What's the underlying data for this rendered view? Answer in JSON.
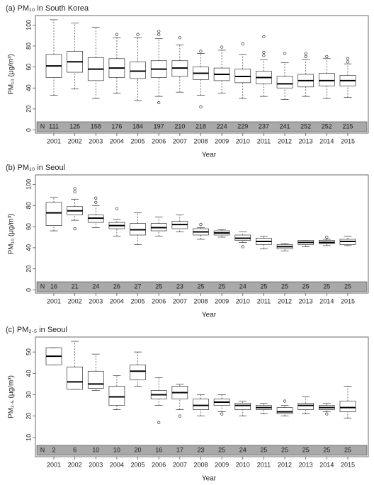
{
  "chart_data": [
    {
      "type": "box",
      "title": "(a) PM₁₀ in South Korea",
      "x_label": "Year",
      "y_label": "PM₁₀ (μg/m³)",
      "categories": [
        "2001",
        "2002",
        "2003",
        "2004",
        "2005",
        "2006",
        "2007",
        "2008",
        "2009",
        "2010",
        "2011",
        "2012",
        "2013",
        "2014",
        "2015"
      ],
      "boxes": [
        {
          "min": 33,
          "q1": 50,
          "median": 61,
          "q3": 72,
          "max": 105,
          "outliers": []
        },
        {
          "min": 39,
          "q1": 55,
          "median": 65,
          "q3": 75,
          "max": 102,
          "outliers": []
        },
        {
          "min": 30,
          "q1": 47,
          "median": 58,
          "q3": 69,
          "max": 98,
          "outliers": []
        },
        {
          "min": 35,
          "q1": 50,
          "median": 59,
          "q3": 68,
          "max": 88,
          "outliers": [
            91
          ]
        },
        {
          "min": 28,
          "q1": 49,
          "median": 56,
          "q3": 65,
          "max": 88,
          "outliers": [
            91
          ]
        },
        {
          "min": 32,
          "q1": 50,
          "median": 58,
          "q3": 66,
          "max": 87,
          "outliers": [
            91,
            94,
            26
          ]
        },
        {
          "min": 36,
          "q1": 51,
          "median": 59,
          "q3": 66,
          "max": 81,
          "outliers": [
            88
          ]
        },
        {
          "min": 33,
          "q1": 48,
          "median": 54,
          "q3": 60,
          "max": 73,
          "outliers": [
            75,
            22
          ]
        },
        {
          "min": 35,
          "q1": 47,
          "median": 53,
          "q3": 59,
          "max": 76,
          "outliers": [
            79
          ]
        },
        {
          "min": 30,
          "q1": 45,
          "median": 51,
          "q3": 58,
          "max": 72,
          "outliers": [
            82
          ]
        },
        {
          "min": 32,
          "q1": 44,
          "median": 50,
          "q3": 56,
          "max": 67,
          "outliers": [
            71,
            74,
            89
          ]
        },
        {
          "min": 29,
          "q1": 40,
          "median": 44,
          "q3": 51,
          "max": 64,
          "outliers": [
            73
          ]
        },
        {
          "min": 32,
          "q1": 41,
          "median": 47,
          "q3": 53,
          "max": 67,
          "outliers": [
            70,
            73
          ]
        },
        {
          "min": 30,
          "q1": 42,
          "median": 47,
          "q3": 54,
          "max": 68,
          "outliers": [
            70
          ]
        },
        {
          "min": 31,
          "q1": 42,
          "median": 47,
          "q3": 52,
          "max": 63,
          "outliers": [
            65,
            68
          ]
        }
      ],
      "n_label": "N",
      "n_values": [
        111,
        125,
        158,
        176,
        184,
        197,
        210,
        218,
        224,
        229,
        237,
        241,
        252,
        252,
        215
      ],
      "ylim": [
        -3,
        109
      ],
      "yticks": [
        0,
        20,
        40,
        60,
        80,
        100
      ],
      "color": "#ffffff"
    },
    {
      "type": "box",
      "title": "(b) PM₁₀ in Seoul",
      "x_label": "Year",
      "y_label": "PM₁₀ (μg/m³)",
      "categories": [
        "2001",
        "2002",
        "2003",
        "2004",
        "2005",
        "2006",
        "2007",
        "2008",
        "2009",
        "2010",
        "2011",
        "2012",
        "2013",
        "2014",
        "2015"
      ],
      "boxes": [
        {
          "min": 56,
          "q1": 61,
          "median": 73,
          "q3": 83,
          "max": 88,
          "outliers": []
        },
        {
          "min": 66,
          "q1": 71,
          "median": 75,
          "q3": 79,
          "max": 86,
          "outliers": [
            96,
            93,
            58
          ]
        },
        {
          "min": 59,
          "q1": 64,
          "median": 68,
          "q3": 71,
          "max": 80,
          "outliers": [
            87,
            83
          ]
        },
        {
          "min": 51,
          "q1": 58,
          "median": 61,
          "q3": 64,
          "max": 67,
          "outliers": [
            77
          ]
        },
        {
          "min": 43,
          "q1": 52,
          "median": 57,
          "q3": 63,
          "max": 73,
          "outliers": []
        },
        {
          "min": 51,
          "q1": 56,
          "median": 59,
          "q3": 63,
          "max": 69,
          "outliers": []
        },
        {
          "min": 55,
          "q1": 58,
          "median": 62,
          "q3": 65,
          "max": 71,
          "outliers": []
        },
        {
          "min": 48,
          "q1": 52,
          "median": 55,
          "q3": 58,
          "max": 59,
          "outliers": [
            62
          ]
        },
        {
          "min": 50,
          "q1": 52,
          "median": 54,
          "q3": 56,
          "max": 57,
          "outliers": []
        },
        {
          "min": 45,
          "q1": 47,
          "median": 49,
          "q3": 52,
          "max": 55,
          "outliers": [
            41
          ]
        },
        {
          "min": 39,
          "q1": 43,
          "median": 46,
          "q3": 49,
          "max": 51,
          "outliers": []
        },
        {
          "min": 37,
          "q1": 39,
          "median": 41,
          "q3": 43,
          "max": 44,
          "outliers": []
        },
        {
          "min": 41,
          "q1": 43,
          "median": 45,
          "q3": 47,
          "max": 47,
          "outliers": []
        },
        {
          "min": 42,
          "q1": 44,
          "median": 45,
          "q3": 47,
          "max": 48,
          "outliers": [
            50
          ]
        },
        {
          "min": 42,
          "q1": 43,
          "median": 46,
          "q3": 48,
          "max": 51,
          "outliers": []
        }
      ],
      "n_label": "N",
      "n_values": [
        16,
        21,
        24,
        26,
        27,
        25,
        23,
        25,
        25,
        24,
        25,
        25,
        25,
        25,
        25
      ],
      "ylim": [
        -3,
        109
      ],
      "yticks": [
        0,
        20,
        40,
        60,
        80,
        100
      ],
      "color": "#ffffff"
    },
    {
      "type": "box",
      "title": "(c) PM₂.₅ in Seoul",
      "x_label": "Year",
      "y_label": "PM₂.₅ (μg/m³)",
      "categories": [
        "2001",
        "2002",
        "2003",
        "2004",
        "2005",
        "2006",
        "2007",
        "2008",
        "2009",
        "2010",
        "2011",
        "2012",
        "2013",
        "2014",
        "2015"
      ],
      "boxes": [
        {
          "min": 44,
          "q1": 44,
          "median": 48,
          "q3": 52,
          "max": 52,
          "outliers": []
        },
        {
          "min": 32.5,
          "q1": 32.5,
          "median": 36,
          "q3": 43,
          "max": 55,
          "outliers": []
        },
        {
          "min": 32,
          "q1": 33,
          "median": 35,
          "q3": 41,
          "max": 49,
          "outliers": []
        },
        {
          "min": 23,
          "q1": 25,
          "median": 29,
          "q3": 34,
          "max": 39,
          "outliers": []
        },
        {
          "min": 34,
          "q1": 37,
          "median": 41,
          "q3": 44,
          "max": 50,
          "outliers": []
        },
        {
          "min": 25,
          "q1": 28,
          "median": 30,
          "q3": 32,
          "max": 38,
          "outliers": [
            17
          ]
        },
        {
          "min": 23,
          "q1": 28,
          "median": 31,
          "q3": 34,
          "max": 35,
          "outliers": [
            20
          ]
        },
        {
          "min": 20,
          "q1": 23,
          "median": 25,
          "q3": 28,
          "max": 30,
          "outliers": []
        },
        {
          "min": 22,
          "q1": 25,
          "median": 26.5,
          "q3": 28,
          "max": 30,
          "outliers": [
            21
          ]
        },
        {
          "min": 20,
          "q1": 23,
          "median": 25,
          "q3": 26,
          "max": 27,
          "outliers": []
        },
        {
          "min": 21,
          "q1": 23,
          "median": 24,
          "q3": 25,
          "max": 26,
          "outliers": []
        },
        {
          "min": 20,
          "q1": 21,
          "median": 22,
          "q3": 24,
          "max": 25,
          "outliers": [
            27
          ]
        },
        {
          "min": 21,
          "q1": 23,
          "median": 25,
          "q3": 26,
          "max": 29,
          "outliers": []
        },
        {
          "min": 22,
          "q1": 23,
          "median": 24,
          "q3": 25,
          "max": 26,
          "outliers": [
            21
          ]
        },
        {
          "min": 19,
          "q1": 22,
          "median": 24,
          "q3": 27,
          "max": 34,
          "outliers": []
        }
      ],
      "n_label": "N",
      "n_values": [
        2,
        6,
        10,
        10,
        20,
        16,
        17,
        23,
        25,
        24,
        25,
        25,
        25,
        25,
        25
      ],
      "ylim": [
        1,
        57
      ],
      "yticks": [
        10,
        20,
        30,
        40,
        50
      ],
      "color": "#ffffff"
    }
  ]
}
